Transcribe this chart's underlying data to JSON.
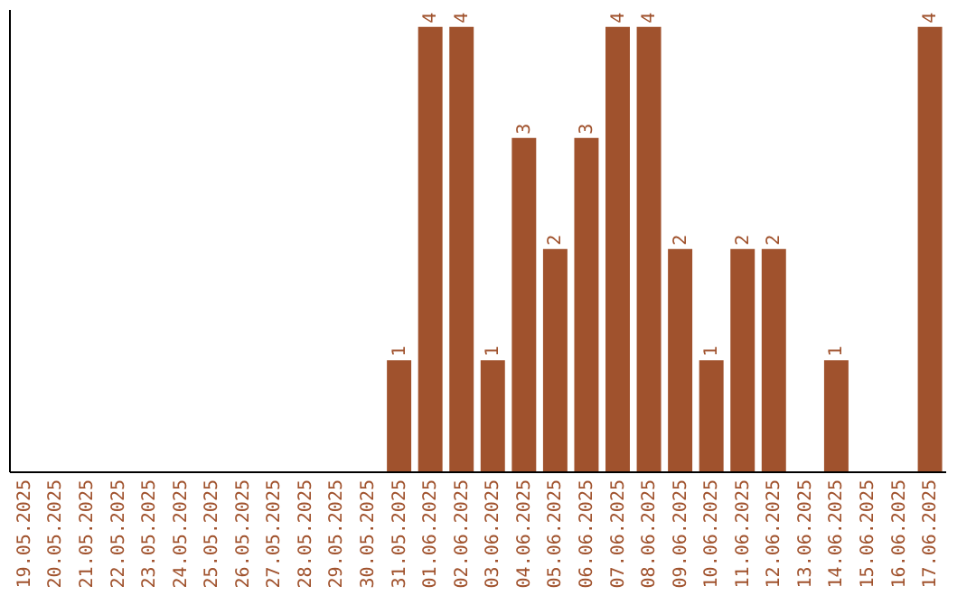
{
  "chart_data": {
    "type": "bar",
    "categories": [
      "19.05.2025",
      "20.05.2025",
      "21.05.2025",
      "22.05.2025",
      "23.05.2025",
      "24.05.2025",
      "25.05.2025",
      "26.05.2025",
      "27.05.2025",
      "28.05.2025",
      "29.05.2025",
      "30.05.2025",
      "31.05.2025",
      "01.06.2025",
      "02.06.2025",
      "03.06.2025",
      "04.06.2025",
      "05.06.2025",
      "06.06.2025",
      "07.06.2025",
      "08.06.2025",
      "09.06.2025",
      "10.06.2025",
      "11.06.2025",
      "12.06.2025",
      "13.06.2025",
      "14.06.2025",
      "15.06.2025",
      "16.06.2025",
      "17.06.2025"
    ],
    "values": [
      null,
      null,
      null,
      null,
      null,
      null,
      null,
      null,
      null,
      null,
      null,
      null,
      1,
      4,
      4,
      1,
      3,
      2,
      3,
      4,
      4,
      2,
      1,
      2,
      2,
      null,
      1,
      null,
      null,
      4
    ],
    "color": "#a0522d",
    "data_labels": true,
    "tick_labels": "x"
  }
}
